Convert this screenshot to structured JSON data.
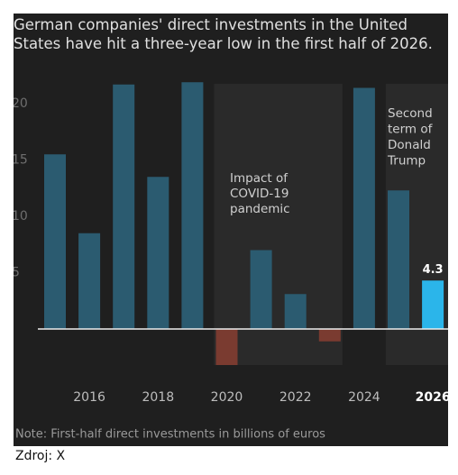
{
  "chart_data": {
    "type": "bar",
    "title": "German companies' direct investments in the United States have hit a three-year low in the first half of 2026.",
    "categories": [
      null,
      "2016",
      null,
      "2018",
      null,
      "2020",
      null,
      "2022",
      null,
      "2024",
      null,
      "2026"
    ],
    "values": [
      15.5,
      8.5,
      21.7,
      13.5,
      21.9,
      -3.2,
      7.0,
      3.1,
      -1.1,
      21.4,
      12.3,
      4.3
    ],
    "colors": [
      "#2b5b70",
      "#2b5b70",
      "#2b5b70",
      "#2b5b70",
      "#2b5b70",
      "#7a3b30",
      "#2b5b70",
      "#2b5b70",
      "#7a3b30",
      "#2b5b70",
      "#2b5b70",
      "#2bb5ea"
    ],
    "ylim": [
      -4,
      22
    ],
    "yticks": [
      5,
      10,
      15,
      20
    ],
    "grid": false,
    "annotations": [
      {
        "lines": [
          "Impact of",
          "COVID-19",
          "pandemic"
        ]
      },
      {
        "lines": [
          "Second",
          "term of",
          "Donald",
          "Trump"
        ]
      }
    ],
    "note": "Note: First-half direct investments in billions of euros"
  },
  "source": "Zdroj: X"
}
